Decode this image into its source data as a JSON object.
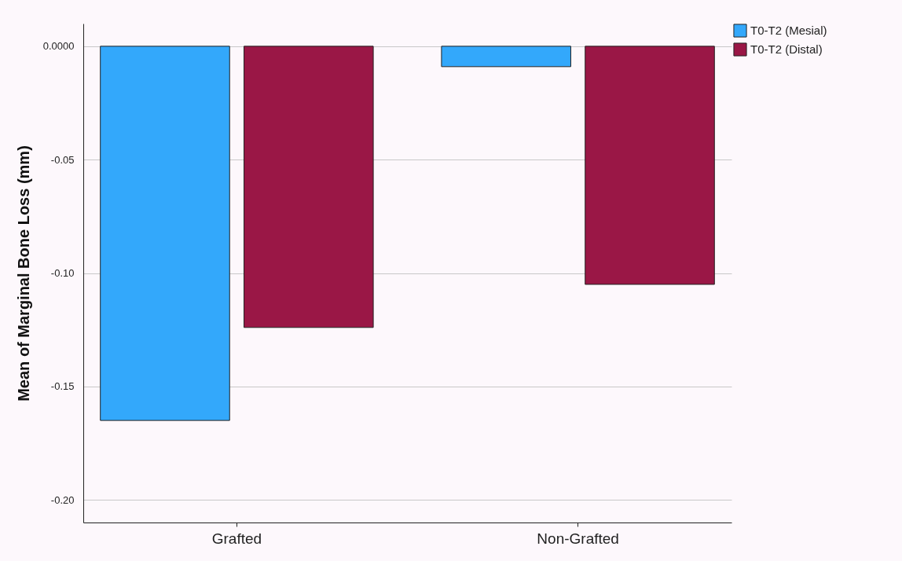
{
  "chart_data": {
    "type": "bar",
    "ylabel": "Mean of Marginal Bone Loss (mm)",
    "categories": [
      "Grafted",
      "Non-Grafted"
    ],
    "series": [
      {
        "name": "T0-T2 (Mesial)",
        "color": "#33a8fb",
        "values": [
          -0.165,
          -0.009
        ]
      },
      {
        "name": "T0-T2 (Distal)",
        "color": "#9a1746",
        "values": [
          -0.124,
          -0.105
        ]
      }
    ],
    "ylim": [
      -0.21,
      0.01
    ],
    "yticks": [
      {
        "value": 0,
        "label": "0.0000"
      },
      -0.05,
      {
        "value": -0.1,
        "label": "-0.10"
      },
      -0.15,
      {
        "value": -0.2,
        "label": "-0.20"
      }
    ],
    "grid": "y",
    "legend": "top right"
  }
}
